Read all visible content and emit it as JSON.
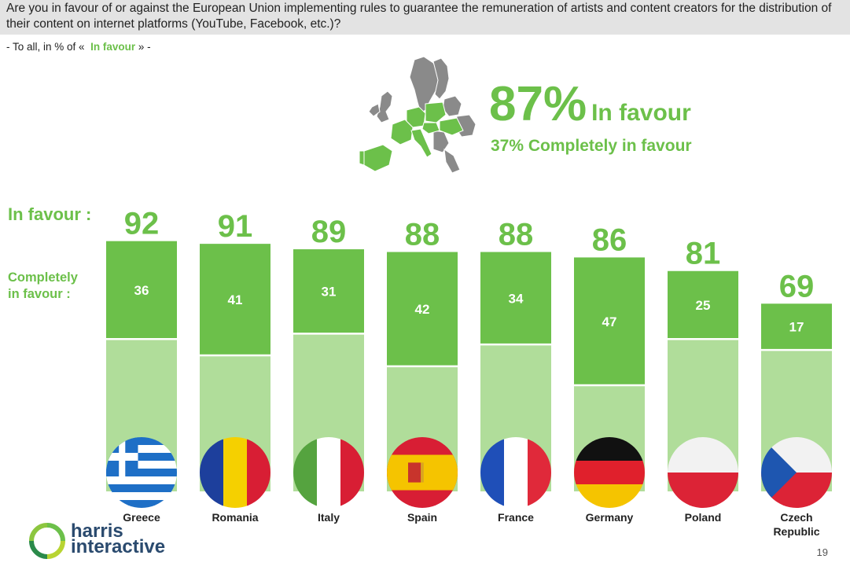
{
  "question": "Are you in favour of or against the European Union implementing rules to guarantee the remuneration of artists and content creators for the distribution of their content on internet platforms (YouTube, Facebook, etc.)?",
  "base": {
    "prefix": "- To all, in % of «",
    "highlight": "In favour",
    "suffix": "» -"
  },
  "headline": {
    "total": "87%",
    "total_label": "In favour",
    "complete": "37% Completely in favour"
  },
  "row_labels": {
    "in_favour": "In favour :",
    "completely_line1": "Completely",
    "completely_line2": "in favour :"
  },
  "footer": {
    "brand_line1": "harris",
    "brand_line2": "interactive",
    "page": "19"
  },
  "colors": {
    "accent": "#6cc04a",
    "bar_dark": "#6cc04a",
    "bar_light": "#b0dd9a"
  },
  "chart_data": {
    "type": "bar",
    "categories": [
      "Greece",
      "Romania",
      "Italy",
      "Spain",
      "France",
      "Germany",
      "Poland",
      "Czech Republic"
    ],
    "series": [
      {
        "name": "In favour",
        "values": [
          92,
          91,
          89,
          88,
          88,
          86,
          81,
          69
        ]
      },
      {
        "name": "Completely in favour",
        "values": [
          36,
          41,
          31,
          42,
          34,
          47,
          25,
          17
        ]
      }
    ],
    "flags": [
      "greece-flag",
      "romania-flag",
      "italy-flag",
      "spain-flag",
      "france-flag",
      "germany-flag",
      "poland-flag",
      "czech-republic-flag"
    ],
    "ylim": [
      0,
      100
    ]
  }
}
